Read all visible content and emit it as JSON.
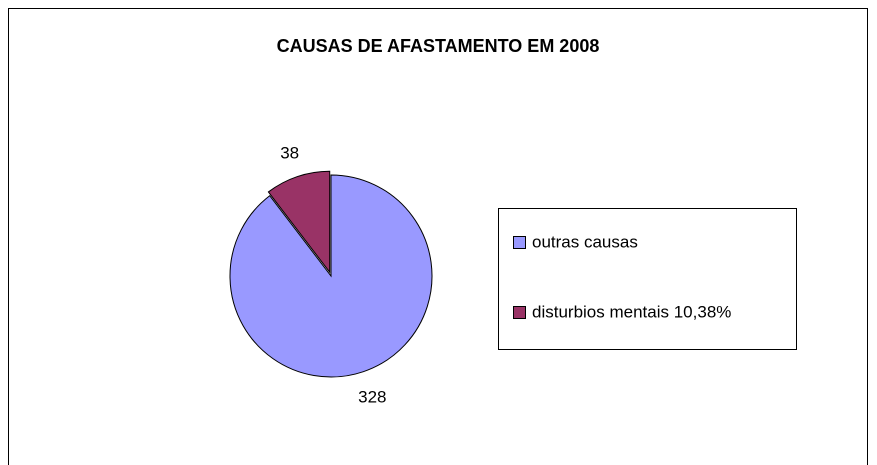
{
  "chart_data": {
    "type": "pie",
    "title": "CAUSAS DE AFASTAMENTO EM 2008",
    "categories": [
      "outras causas",
      "disturbios mentais 10,38%"
    ],
    "values": [
      328,
      38
    ],
    "colors": [
      "#9999ff",
      "#993366"
    ],
    "legend": "right"
  }
}
